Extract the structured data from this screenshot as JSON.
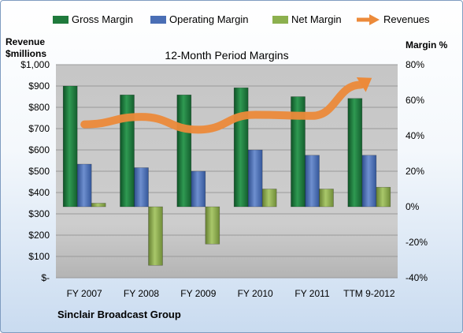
{
  "chart_data": {
    "type": "bar",
    "title": "12-Month Period Margins",
    "company": "Sinclair Broadcast Group",
    "ylabel_left": [
      "Revenue",
      "$millions"
    ],
    "ylabel_right": "Margin %",
    "categories": [
      "FY 2007",
      "FY 2008",
      "FY 2009",
      "FY 2010",
      "FY 2011",
      "TTM 9-2012"
    ],
    "left_axis": {
      "ylim": [
        0,
        1000
      ],
      "ticks": [
        1000,
        900,
        800,
        700,
        600,
        500,
        400,
        300,
        200,
        100,
        0
      ],
      "tick_labels": [
        "$1,000",
        "$900",
        "$800",
        "$700",
        "$600",
        "$500",
        "$400",
        "$300",
        "$200",
        "$100",
        "$-"
      ]
    },
    "right_axis": {
      "ylim": [
        -40,
        80
      ],
      "ticks": [
        80,
        60,
        40,
        20,
        0,
        -20,
        -40
      ],
      "tick_labels": [
        "80%",
        "60%",
        "40%",
        "20%",
        "0%",
        "-20%",
        "-40%"
      ]
    },
    "series": [
      {
        "name": "Gross Margin",
        "kind": "bar",
        "axis": "right",
        "color": "#1f7a3c",
        "values": [
          68,
          63,
          63,
          67,
          62,
          61
        ]
      },
      {
        "name": "Operating Margin",
        "kind": "bar",
        "axis": "right",
        "color": "#4a6eb5",
        "values": [
          24,
          22,
          20,
          32,
          29,
          29
        ]
      },
      {
        "name": "Net Margin",
        "kind": "bar",
        "axis": "right",
        "color": "#8cb04e",
        "values": [
          2,
          -33,
          -21,
          10,
          10,
          11
        ]
      },
      {
        "name": "Revenues",
        "kind": "line",
        "axis": "left",
        "color": "#ec8a3a",
        "values": [
          720,
          755,
          695,
          765,
          760,
          930
        ]
      }
    ],
    "grid": true,
    "legend_position": "top"
  }
}
